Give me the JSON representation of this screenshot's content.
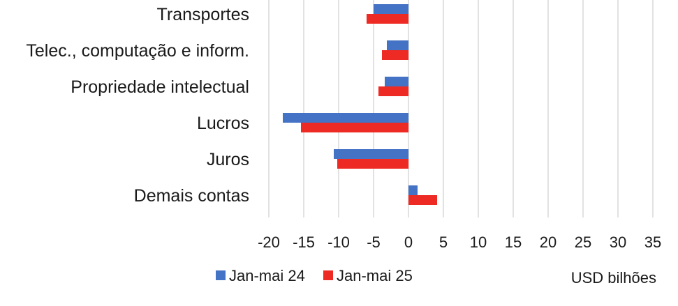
{
  "chart_data": {
    "type": "bar",
    "orientation": "horizontal",
    "categories": [
      "Transportes",
      "Telec., computação e inform.",
      "Propriedade intelectual",
      "Lucros",
      "Juros",
      "Demais contas"
    ],
    "series": [
      {
        "name": "Jan-mai 24",
        "color": "#4472C4",
        "values": [
          -5.0,
          -3.1,
          -3.4,
          -18.0,
          -10.7,
          1.3
        ]
      },
      {
        "name": "Jan-mai 25",
        "color": "#EE2A24",
        "values": [
          -6.0,
          -3.8,
          -4.3,
          -15.4,
          -10.2,
          4.1
        ]
      }
    ],
    "xlim": [
      -20,
      35
    ],
    "xticks": [
      -20,
      -15,
      -10,
      -5,
      0,
      5,
      10,
      15,
      20,
      25,
      30,
      35
    ],
    "xlabel": "USD bilhões",
    "grid": true,
    "legend_position": "bottom-left"
  }
}
